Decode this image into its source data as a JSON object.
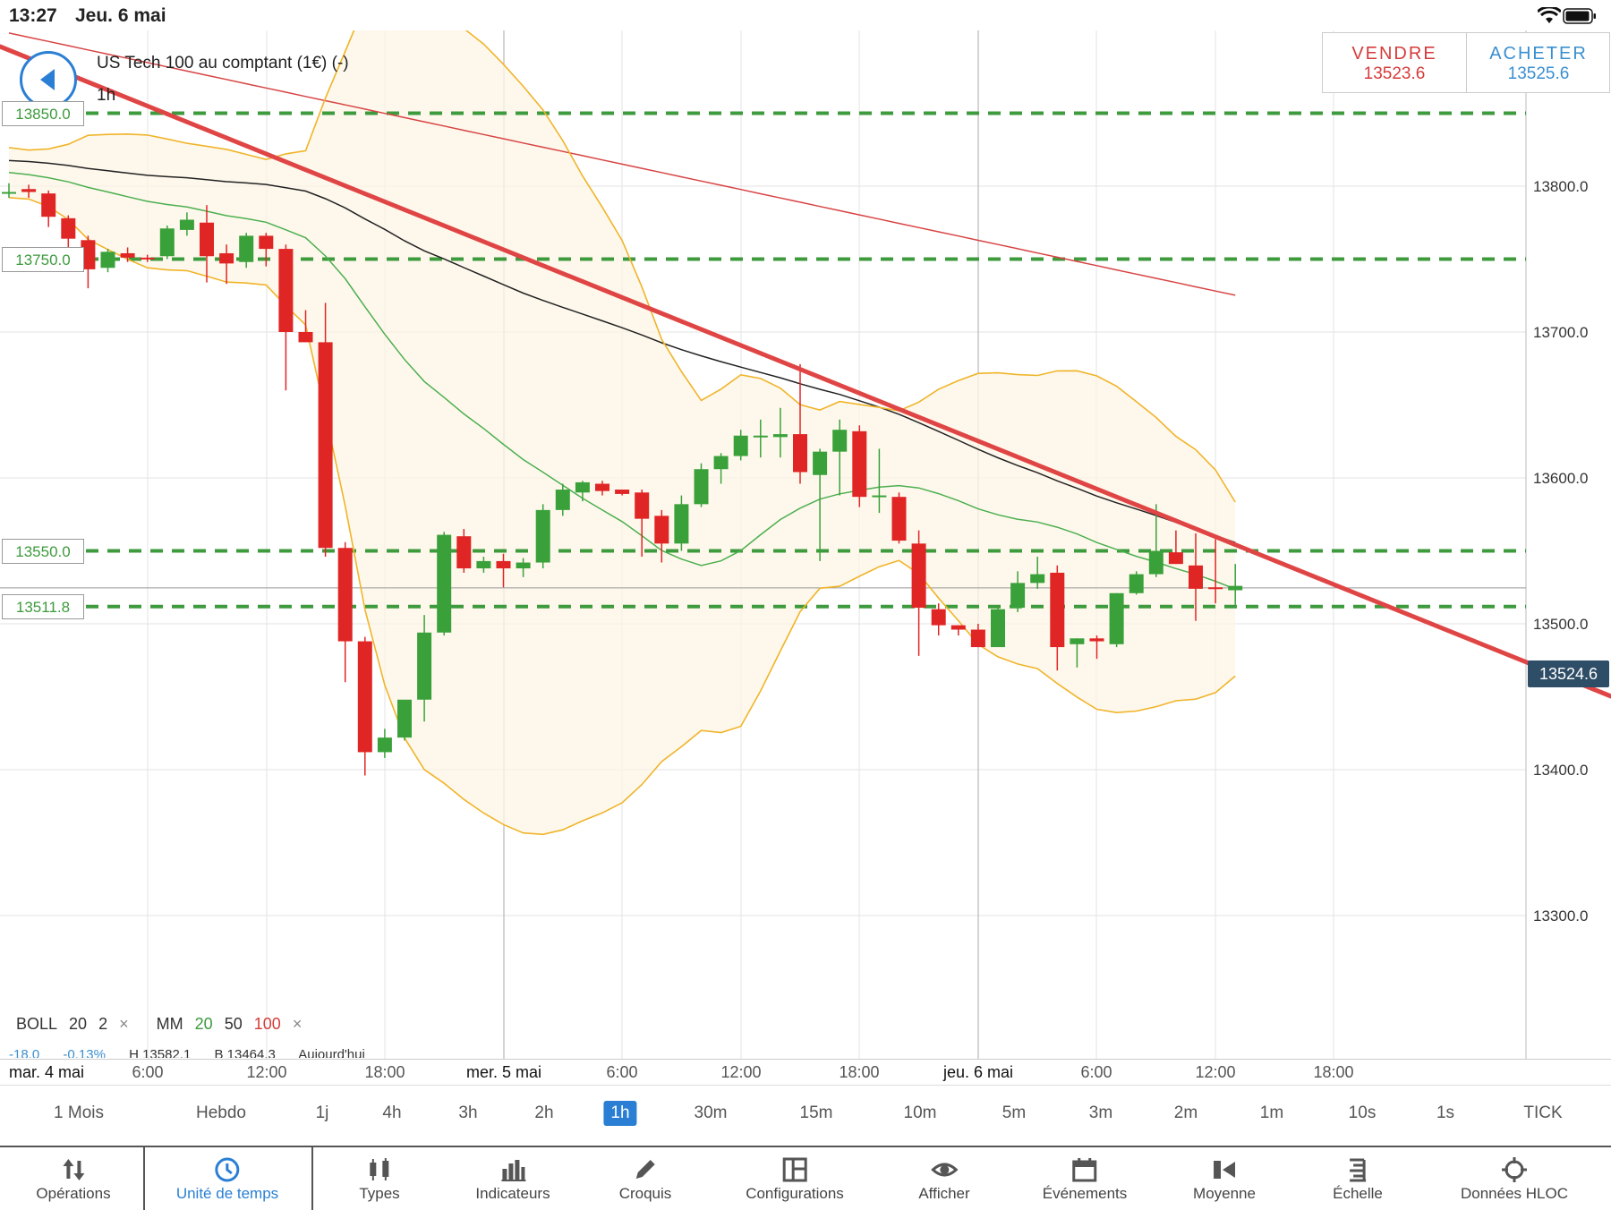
{
  "status": {
    "time": "13:27",
    "date": "Jeu. 6 mai"
  },
  "instrument": {
    "name": "US Tech 100 au comptant (1€) (-)",
    "timeframe": "1h"
  },
  "trade": {
    "sell_label": "VENDRE",
    "sell_price": "13523.6",
    "buy_label": "ACHETER",
    "buy_price": "13525.6"
  },
  "colors": {
    "up": "#3aa13a",
    "down": "#e02525",
    "trendline": "#e04545",
    "boll": "#f0b429",
    "ma20": "#4caf50",
    "ma50": "#222222",
    "ma100": "#d84343",
    "hline": "#3d9a3d",
    "accent": "#2a7fd4"
  },
  "current_price_tag": "13524.6",
  "horizontal_lines": [
    {
      "label": "13850.0",
      "price": 13850
    },
    {
      "label": "13750.0",
      "price": 13750
    },
    {
      "label": "13550.0",
      "price": 13550
    },
    {
      "label": "13511.8",
      "price": 13511.8
    }
  ],
  "legend": {
    "boll": {
      "name": "BOLL",
      "p1": "20",
      "p2": "2",
      "remove": "×"
    },
    "mm": {
      "name": "MM",
      "p1": "20",
      "p2": "50",
      "p3": "100",
      "remove": "×"
    },
    "row2": {
      "change": "-18.0",
      "pct": "-0.13%",
      "high": "H 13582.1",
      "low": "B 13464.3",
      "today": "Aujourd'hui"
    }
  },
  "x_axis": [
    {
      "label": "mar. 4 mai",
      "day": true
    },
    {
      "label": "6:00"
    },
    {
      "label": "12:00"
    },
    {
      "label": "18:00"
    },
    {
      "label": "mer. 5 mai",
      "day": true
    },
    {
      "label": "6:00"
    },
    {
      "label": "12:00"
    },
    {
      "label": "18:00"
    },
    {
      "label": "jeu. 6 mai",
      "day": true
    },
    {
      "label": "6:00"
    },
    {
      "label": "12:00"
    },
    {
      "label": "18:00"
    }
  ],
  "timeframes": [
    "1 Mois",
    "Hebdo",
    "1j",
    "4h",
    "3h",
    "2h",
    "1h",
    "30m",
    "15m",
    "10m",
    "5m",
    "3m",
    "2m",
    "1m",
    "10s",
    "1s",
    "TICK"
  ],
  "active_timeframe": "1h",
  "toolbar": [
    {
      "label": "Opérations",
      "icon": "arrows-up-down-icon"
    },
    {
      "label": "Unité de temps",
      "icon": "clock-icon",
      "active": true
    },
    {
      "label": "Types",
      "icon": "candles-icon"
    },
    {
      "label": "Indicateurs",
      "icon": "bar-chart-icon"
    },
    {
      "label": "Croquis",
      "icon": "pencil-icon"
    },
    {
      "label": "Configurations",
      "icon": "layout-icon"
    },
    {
      "label": "Afficher",
      "icon": "eye-icon"
    },
    {
      "label": "Événements",
      "icon": "calendar-icon"
    },
    {
      "label": "Moyenne",
      "icon": "average-icon"
    },
    {
      "label": "Échelle",
      "icon": "scale-icon"
    },
    {
      "label": "Données HLOC",
      "icon": "crosshair-icon"
    }
  ],
  "chart_data": {
    "type": "candlestick",
    "y_ticks": [
      "13800.0",
      "13700.0",
      "13600.0",
      "13500.0",
      "13400.0",
      "13300.0"
    ],
    "ylim": [
      13300,
      13905
    ],
    "candles": [
      [
        13796,
        13802,
        13792,
        13796
      ],
      [
        13798,
        13801,
        13792,
        13796
      ],
      [
        13795,
        13797,
        13772,
        13779
      ],
      [
        13778,
        13780,
        13752,
        13764
      ],
      [
        13763,
        13766,
        13730,
        13743
      ],
      [
        13744,
        13757,
        13741,
        13755
      ],
      [
        13754,
        13758,
        13748,
        13751
      ],
      [
        13751,
        13753,
        13748,
        13750
      ],
      [
        13752,
        13773,
        13750,
        13771
      ],
      [
        13770,
        13782,
        13766,
        13777
      ],
      [
        13775,
        13787,
        13734,
        13752
      ],
      [
        13754,
        13760,
        13733,
        13747
      ],
      [
        13748,
        13768,
        13744,
        13766
      ],
      [
        13766,
        13768,
        13745,
        13757
      ],
      [
        13757,
        13760,
        13660,
        13700
      ],
      [
        13700,
        13715,
        13694,
        13693
      ],
      [
        13693,
        13720,
        13546,
        13552
      ],
      [
        13552,
        13556,
        13460,
        13488
      ],
      [
        13488,
        13491,
        13396,
        13412
      ],
      [
        13412,
        13428,
        13408,
        13422
      ],
      [
        13422,
        13442,
        13420,
        13448
      ],
      [
        13448,
        13506,
        13433,
        13494
      ],
      [
        13494,
        13563,
        13492,
        13561
      ],
      [
        13560,
        13565,
        13535,
        13538
      ],
      [
        13538,
        13546,
        13535,
        13543
      ],
      [
        13543,
        13548,
        13525,
        13538
      ],
      [
        13538,
        13545,
        13532,
        13542
      ],
      [
        13542,
        13582,
        13538,
        13578
      ],
      [
        13578,
        13596,
        13574,
        13592
      ],
      [
        13590,
        13598,
        13584,
        13597
      ],
      [
        13596,
        13598,
        13588,
        13591
      ],
      [
        13592,
        13592,
        13588,
        13589
      ],
      [
        13590,
        13592,
        13546,
        13572
      ],
      [
        13574,
        13578,
        13542,
        13555
      ],
      [
        13555,
        13588,
        13550,
        13582
      ],
      [
        13582,
        13610,
        13580,
        13606
      ],
      [
        13606,
        13617,
        13596,
        13615
      ],
      [
        13615,
        13633,
        13612,
        13629
      ],
      [
        13628,
        13640,
        13614,
        13629
      ],
      [
        13628,
        13648,
        13614,
        13630
      ],
      [
        13630,
        13678,
        13596,
        13604
      ],
      [
        13602,
        13620,
        13543,
        13618
      ],
      [
        13618,
        13640,
        13588,
        13633
      ],
      [
        13632,
        13636,
        13580,
        13587
      ],
      [
        13587,
        13620,
        13576,
        13588
      ],
      [
        13587,
        13590,
        13555,
        13557
      ],
      [
        13555,
        13564,
        13478,
        13511
      ],
      [
        13510,
        13514,
        13492,
        13499
      ],
      [
        13499,
        13499,
        13492,
        13496
      ],
      [
        13496,
        13500,
        13484,
        13484
      ],
      [
        13484,
        13511,
        13486,
        13510
      ],
      [
        13511,
        13536,
        13508,
        13528
      ],
      [
        13528,
        13546,
        13524,
        13534
      ],
      [
        13535,
        13540,
        13468,
        13484
      ],
      [
        13486,
        13490,
        13470,
        13490
      ],
      [
        13490,
        13492,
        13476,
        13488
      ],
      [
        13486,
        13521,
        13484,
        13521
      ],
      [
        13521,
        13536,
        13520,
        13534
      ],
      [
        13534,
        13582,
        13532,
        13550
      ],
      [
        13549,
        13564,
        13541,
        13541
      ],
      [
        13540,
        13562,
        13502,
        13524
      ],
      [
        13525,
        13558,
        13514,
        13524
      ],
      [
        13523,
        13541,
        13513,
        13526
      ]
    ]
  }
}
